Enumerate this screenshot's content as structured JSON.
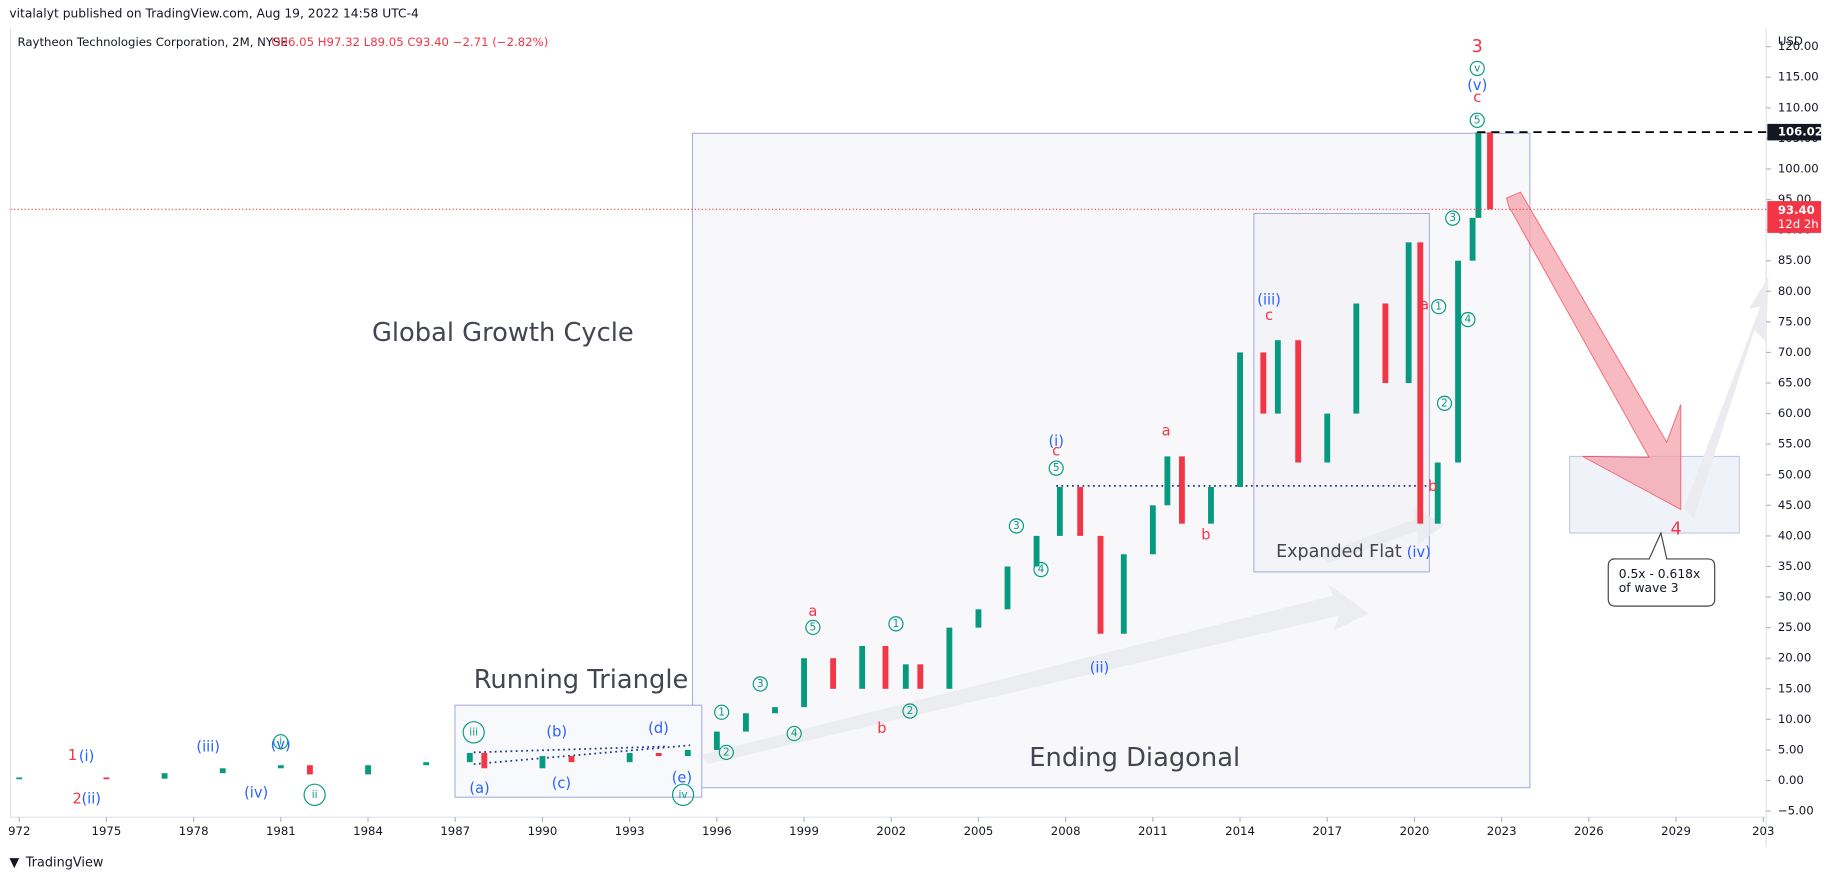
{
  "header": {
    "publisher": "vitalalyt published on TradingView.com, Aug 19, 2022 14:58 UTC-4",
    "legend": "Raytheon Technologies Corporation, 2M, NYSE",
    "ohlc": "O96.05 H97.32 L89.05 C93.40 −2.71 (−2.82%)",
    "currency": "USD",
    "footer": "TradingView"
  },
  "chart_data": {
    "type": "candlestick",
    "up_color": "#089981",
    "down_color": "#f23645",
    "xlim": [
      1971.7,
      2032.1
    ],
    "xticks": [
      {
        "value": 1972,
        "label": "972"
      },
      1975,
      1978,
      1981,
      1984,
      1987,
      1990,
      1993,
      1996,
      1999,
      2002,
      2005,
      2008,
      2011,
      2014,
      2017,
      2020,
      2023,
      2026,
      2029,
      {
        "value": 2032,
        "label": "203"
      }
    ],
    "ylim": [
      -6,
      123
    ],
    "yticks": [
      {
        "value": -5,
        "label": "−5.00"
      },
      {
        "value": 0,
        "label": "0.00"
      },
      {
        "value": 5,
        "label": "5.00"
      },
      {
        "value": 10,
        "label": "10.00"
      },
      {
        "value": 15,
        "label": "15.00"
      },
      {
        "value": 20,
        "label": "20.00"
      },
      {
        "value": 25,
        "label": "25.00"
      },
      {
        "value": 30,
        "label": "30.00"
      },
      {
        "value": 35,
        "label": "35.00"
      },
      {
        "value": 40,
        "label": "40.00"
      },
      {
        "value": 45,
        "label": "45.00"
      },
      {
        "value": 50,
        "label": "50.00"
      },
      {
        "value": 55,
        "label": "55.00"
      },
      {
        "value": 60,
        "label": "60.00"
      },
      {
        "value": 65,
        "label": "65.00"
      },
      {
        "value": 70,
        "label": "70.00"
      },
      {
        "value": 75,
        "label": "75.00"
      },
      {
        "value": 80,
        "label": "80.00"
      },
      {
        "value": 85,
        "label": "85.00"
      },
      {
        "value": 90,
        "label": "90.00"
      },
      {
        "value": 95,
        "label": "95.00"
      },
      {
        "value": 100,
        "label": "100.00"
      },
      {
        "value": 105,
        "label": "105.00"
      },
      {
        "value": 110,
        "label": "110.00"
      },
      {
        "value": 115,
        "label": "115.00"
      },
      {
        "value": 120,
        "label": "120.00"
      }
    ],
    "series": [
      {
        "name": "Raytheon Technologies Corporation",
        "x": [
          1972,
          1975,
          1977,
          1979,
          1981,
          1982,
          1984,
          1986,
          1987.5,
          1988,
          1990,
          1991,
          1993,
          1994,
          1995,
          1996,
          1997,
          1998,
          1999,
          2000,
          2001,
          2001.8,
          2002.5,
          2003,
          2004,
          2005,
          2006,
          2007,
          2007.8,
          2008.5,
          2009.2,
          2010,
          2011,
          2011.5,
          2012,
          2013,
          2014,
          2014.8,
          2015.3,
          2016,
          2017,
          2018,
          2019,
          2019.8,
          2020.2,
          2020.8,
          2021.5,
          2022,
          2022.2,
          2022.6
        ],
        "values": [
          0.5,
          0.3,
          1.2,
          2,
          2.5,
          1,
          2.5,
          3,
          4.5,
          2,
          4,
          3,
          4.5,
          4,
          5,
          8,
          11,
          12,
          20,
          15,
          22,
          15,
          19,
          15,
          25,
          28,
          35,
          40,
          48,
          40,
          24,
          37,
          45,
          53,
          42,
          48,
          70,
          60,
          72,
          52,
          60,
          78,
          65,
          88,
          42,
          52,
          85,
          92,
          106,
          93.4
        ]
      }
    ],
    "high_label": 106.02,
    "last_price": {
      "value": 93.4,
      "label": "93.40",
      "countdown": "12d 2h"
    },
    "annotations": [
      {
        "text": "Global Growth Cycle"
      },
      {
        "text": "Running Triangle"
      },
      {
        "text": "Ending Diagonal"
      },
      {
        "text": "Expanded Flat"
      },
      {
        "text": "0.5x - 0.618x"
      },
      {
        "text": "of wave 3"
      }
    ],
    "wave_labels": [
      {
        "text": "1",
        "color": "#f23645"
      },
      {
        "text": "(i)",
        "color": "#2962ff"
      },
      {
        "text": "2",
        "color": "#f23645"
      },
      {
        "text": "(ii)",
        "color": "#2962ff"
      },
      {
        "text": "(iii)",
        "color": "#2962ff"
      },
      {
        "text": "(iv)",
        "color": "#2962ff"
      },
      {
        "text": "(v)",
        "color": "#2962ff"
      },
      {
        "text": "i",
        "color": "#089981",
        "circle": true
      },
      {
        "text": "ii",
        "color": "#089981",
        "circle": true
      },
      {
        "text": "iii",
        "color": "#089981",
        "circle": true
      },
      {
        "text": "(a)",
        "color": "#2962ff"
      },
      {
        "text": "(b)",
        "color": "#2962ff"
      },
      {
        "text": "(c)",
        "color": "#2962ff"
      },
      {
        "text": "(d)",
        "color": "#2962ff"
      },
      {
        "text": "(e)",
        "color": "#2962ff"
      },
      {
        "text": "iv",
        "color": "#089981",
        "circle": true
      },
      {
        "text": "1",
        "color": "#089981",
        "circle": true
      },
      {
        "text": "2",
        "color": "#089981",
        "circle": true
      },
      {
        "text": "3",
        "color": "#089981",
        "circle": true
      },
      {
        "text": "4",
        "color": "#089981",
        "circle": true
      },
      {
        "text": "5",
        "color": "#089981",
        "circle": true
      },
      {
        "text": "a",
        "color": "#f23645"
      },
      {
        "text": "b",
        "color": "#f23645"
      },
      {
        "text": "1",
        "color": "#089981",
        "circle": true
      },
      {
        "text": "2",
        "color": "#089981",
        "circle": true
      },
      {
        "text": "3",
        "color": "#089981",
        "circle": true
      },
      {
        "text": "4",
        "color": "#089981",
        "circle": true
      },
      {
        "text": "5",
        "color": "#089981",
        "circle": true
      },
      {
        "text": "c",
        "color": "#f23645"
      },
      {
        "text": "(i)",
        "color": "#2962ff"
      },
      {
        "text": "(ii)",
        "color": "#2962ff"
      },
      {
        "text": "a",
        "color": "#f23645"
      },
      {
        "text": "b",
        "color": "#f23645"
      },
      {
        "text": "(iii)",
        "color": "#2962ff"
      },
      {
        "text": "c",
        "color": "#f23645"
      },
      {
        "text": "a",
        "color": "#f23645"
      },
      {
        "text": "b",
        "color": "#f23645"
      },
      {
        "text": "(iv)",
        "color": "#2962ff"
      },
      {
        "text": "1",
        "color": "#089981",
        "circle": true
      },
      {
        "text": "2",
        "color": "#089981",
        "circle": true
      },
      {
        "text": "3",
        "color": "#089981",
        "circle": true
      },
      {
        "text": "4",
        "color": "#089981",
        "circle": true
      },
      {
        "text": "5",
        "color": "#089981",
        "circle": true
      },
      {
        "text": "c",
        "color": "#f23645"
      },
      {
        "text": "(v)",
        "color": "#2962ff"
      },
      {
        "text": "v",
        "color": "#089981",
        "circle": true
      },
      {
        "text": "3",
        "color": "#f23645"
      },
      {
        "text": "4",
        "color": "#f23645"
      }
    ]
  }
}
